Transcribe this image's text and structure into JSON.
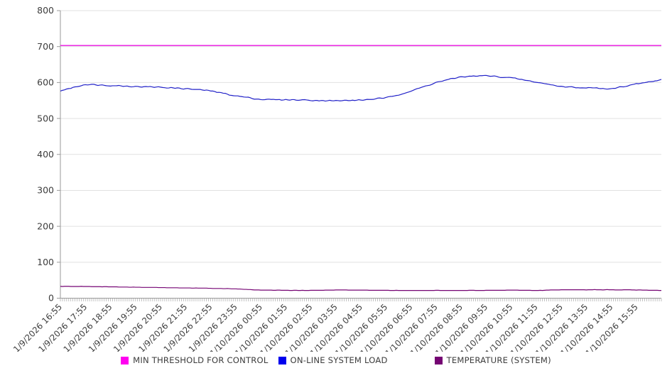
{
  "chart_data": {
    "type": "line",
    "title": "",
    "xlabel": "",
    "ylabel": "",
    "ylim": [
      0,
      800
    ],
    "y_ticks": [
      0,
      100,
      200,
      300,
      400,
      500,
      600,
      700,
      800
    ],
    "grid": true,
    "legend_position": "bottom",
    "x_labels": [
      "1/9/2026 16:55",
      "1/9/2026 17:55",
      "1/9/2026 18:55",
      "1/9/2026 19:55",
      "1/9/2026 20:55",
      "1/9/2026 21:55",
      "1/9/2026 22:55",
      "1/9/2026 23:55",
      "1/10/2026 00:55",
      "1/10/2026 01:55",
      "1/10/2026 02:55",
      "1/10/2026 03:55",
      "1/10/2026 04:55",
      "1/10/2026 05:55",
      "1/10/2026 06:55",
      "1/10/2026 07:55",
      "1/10/2026 08:55",
      "1/10/2026 09:55",
      "1/10/2026 10:55",
      "1/10/2026 11:55",
      "1/10/2026 12:55",
      "1/10/2026 13:55",
      "1/10/2026 14:55",
      "1/10/2026 15:55"
    ],
    "points_per_hour": 12,
    "series": [
      {
        "name": "MIN THRESHOLD FOR CONTROL",
        "color": "#ea12e0",
        "legend_color": "#ff00f0",
        "kind": "flat",
        "value": 703,
        "stroke_width": 1.4
      },
      {
        "name": "ON-LINE SYSTEM LOAD",
        "color": "#2121c8",
        "legend_color": "#0000ee",
        "kind": "keyframes",
        "hourly_values": [
          577,
          595,
          592,
          589,
          587,
          583,
          577,
          563,
          553,
          552,
          551,
          549,
          551,
          557,
          576,
          600,
          616,
          619,
          613,
          601,
          589,
          585,
          583,
          596,
          607
        ],
        "jitter": 2,
        "stroke_width": 1.2
      },
      {
        "name": "TEMPERATURE (SYSTEM)",
        "color": "#750473",
        "legend_color": "#750473",
        "kind": "keyframes",
        "hourly_values": [
          33,
          32.5,
          31.5,
          30.5,
          29.5,
          28.5,
          27.5,
          26,
          22.5,
          22,
          21.5,
          23,
          22.5,
          21.5,
          21.5,
          21.5,
          21.5,
          21.5,
          22.5,
          21.5,
          23.5,
          23.5,
          23.5,
          23,
          21.5
        ],
        "jitter": 0.4,
        "quantize": 0.5,
        "stroke_width": 1.2
      }
    ]
  },
  "style_colors": {
    "background": "#ffffff",
    "gridline": "#e1e1e1",
    "axis": "#9a9a9a",
    "minor_tick": "#b3b3b3",
    "axis_label": "#3c3c3c"
  }
}
